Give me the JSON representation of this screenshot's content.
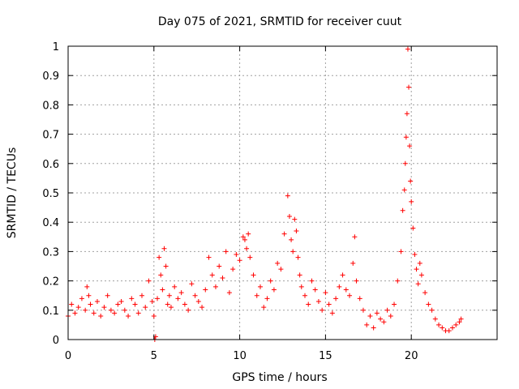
{
  "chart_data": {
    "type": "scatter",
    "title": "Day 075 of 2021, SRMTID for receiver cuut",
    "xlabel": "GPS time / hours",
    "ylabel": "SRMTID / TECUs",
    "xlim": [
      0,
      25
    ],
    "ylim": [
      0,
      1
    ],
    "x_ticks": [
      0,
      5,
      10,
      15,
      20
    ],
    "y_ticks": [
      0,
      0.1,
      0.2,
      0.3,
      0.4,
      0.5,
      0.6,
      0.7,
      0.8,
      0.9,
      1
    ],
    "x_tick_labels": [
      "0",
      "5",
      "10",
      "15",
      "20"
    ],
    "y_tick_labels": [
      "0",
      "0.1",
      "0.2",
      "0.3",
      "0.4",
      "0.5",
      "0.6",
      "0.7",
      "0.8",
      "0.9",
      "1"
    ],
    "grid": true,
    "marker": "+",
    "color": "#ff0000",
    "series": [
      {
        "name": "SRMTID",
        "x": [
          0.0,
          0.2,
          0.4,
          0.6,
          0.8,
          1.0,
          1.1,
          1.2,
          1.3,
          1.5,
          1.7,
          1.9,
          2.1,
          2.3,
          2.5,
          2.7,
          2.9,
          3.1,
          3.3,
          3.5,
          3.7,
          3.9,
          4.1,
          4.3,
          4.5,
          4.7,
          4.9,
          5.0,
          5.05,
          5.1,
          5.2,
          5.3,
          5.4,
          5.5,
          5.6,
          5.7,
          5.8,
          5.9,
          6.0,
          6.2,
          6.4,
          6.6,
          6.8,
          7.0,
          7.2,
          7.4,
          7.6,
          7.8,
          8.0,
          8.2,
          8.4,
          8.6,
          8.8,
          9.0,
          9.2,
          9.4,
          9.6,
          9.8,
          10.0,
          10.2,
          10.3,
          10.4,
          10.5,
          10.6,
          10.8,
          11.0,
          11.2,
          11.4,
          11.6,
          11.8,
          12.0,
          12.2,
          12.4,
          12.6,
          12.8,
          12.9,
          13.0,
          13.1,
          13.2,
          13.3,
          13.4,
          13.5,
          13.6,
          13.8,
          14.0,
          14.2,
          14.4,
          14.6,
          14.8,
          15.0,
          15.2,
          15.4,
          15.6,
          15.8,
          16.0,
          16.2,
          16.4,
          16.6,
          16.7,
          16.8,
          17.0,
          17.2,
          17.4,
          17.6,
          17.8,
          18.0,
          18.2,
          18.4,
          18.6,
          18.8,
          19.0,
          19.2,
          19.4,
          19.5,
          19.6,
          19.65,
          19.7,
          19.75,
          19.8,
          19.85,
          19.9,
          19.95,
          20.0,
          20.1,
          20.2,
          20.3,
          20.4,
          20.5,
          20.6,
          20.8,
          21.0,
          21.2,
          21.4,
          21.6,
          21.8,
          22.0,
          22.2,
          22.4,
          22.6,
          22.8,
          22.9
        ],
        "y": [
          0.08,
          0.12,
          0.09,
          0.11,
          0.14,
          0.1,
          0.18,
          0.15,
          0.12,
          0.09,
          0.13,
          0.08,
          0.11,
          0.15,
          0.1,
          0.09,
          0.12,
          0.13,
          0.1,
          0.08,
          0.14,
          0.12,
          0.09,
          0.15,
          0.11,
          0.2,
          0.13,
          0.08,
          0.0,
          0.01,
          0.14,
          0.28,
          0.22,
          0.17,
          0.31,
          0.25,
          0.12,
          0.15,
          0.11,
          0.18,
          0.14,
          0.16,
          0.12,
          0.1,
          0.19,
          0.15,
          0.13,
          0.11,
          0.17,
          0.28,
          0.22,
          0.18,
          0.25,
          0.21,
          0.3,
          0.16,
          0.24,
          0.29,
          0.27,
          0.35,
          0.34,
          0.31,
          0.36,
          0.28,
          0.22,
          0.15,
          0.18,
          0.11,
          0.14,
          0.2,
          0.17,
          0.26,
          0.24,
          0.36,
          0.49,
          0.42,
          0.34,
          0.3,
          0.41,
          0.37,
          0.28,
          0.22,
          0.18,
          0.15,
          0.12,
          0.2,
          0.17,
          0.13,
          0.1,
          0.16,
          0.12,
          0.09,
          0.14,
          0.18,
          0.22,
          0.17,
          0.15,
          0.26,
          0.35,
          0.2,
          0.14,
          0.1,
          0.05,
          0.08,
          0.04,
          0.09,
          0.07,
          0.06,
          0.1,
          0.08,
          0.12,
          0.2,
          0.3,
          0.44,
          0.51,
          0.6,
          0.69,
          0.77,
          0.99,
          0.86,
          0.66,
          0.54,
          0.47,
          0.38,
          0.29,
          0.24,
          0.19,
          0.26,
          0.22,
          0.16,
          0.12,
          0.1,
          0.07,
          0.05,
          0.04,
          0.03,
          0.03,
          0.04,
          0.05,
          0.06,
          0.07
        ]
      }
    ]
  }
}
